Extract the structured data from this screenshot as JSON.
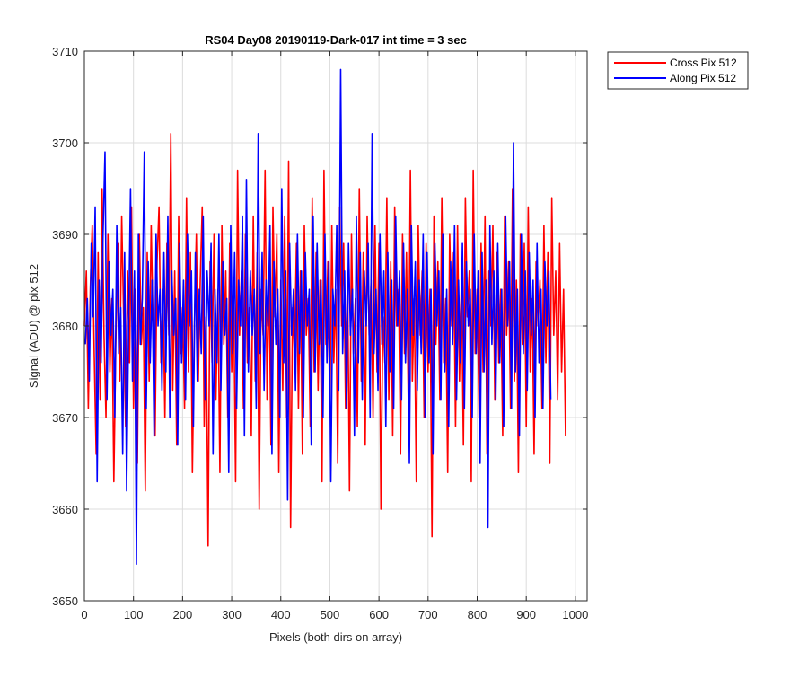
{
  "chart_data": {
    "type": "line",
    "title": "RS04 Day08 20190119-Dark-017 int time = 3 sec",
    "xlabel": "Pixels (both dirs on array)",
    "ylabel": "Signal (ADU) @ pix 512",
    "xlim": [
      0,
      1024
    ],
    "ylim": [
      3650,
      3710
    ],
    "xticks": [
      0,
      100,
      200,
      300,
      400,
      500,
      600,
      700,
      800,
      900,
      1000
    ],
    "yticks": [
      3650,
      3660,
      3670,
      3680,
      3690,
      3700,
      3710
    ],
    "grid": true,
    "legend_position": "outside-top-right",
    "series": [
      {
        "name": "Cross Pix 512",
        "color": "#ff0000",
        "x_start": 0,
        "x_step": 4,
        "values": [
          3680,
          3686,
          3671,
          3684,
          3691,
          3677,
          3666,
          3688,
          3672,
          3695,
          3679,
          3670,
          3690,
          3675,
          3683,
          3663,
          3678,
          3689,
          3674,
          3692,
          3681,
          3669,
          3686,
          3676,
          3693,
          3671,
          3684,
          3665,
          3690,
          3678,
          3682,
          3662,
          3688,
          3674,
          3691,
          3680,
          3668,
          3687,
          3693,
          3676,
          3684,
          3670,
          3689,
          3679,
          3701,
          3673,
          3686,
          3667,
          3692,
          3677,
          3682,
          3671,
          3694,
          3675,
          3688,
          3664,
          3680,
          3690,
          3674,
          3685,
          3693,
          3669,
          3681,
          3656,
          3687,
          3676,
          3690,
          3672,
          3684,
          3664,
          3691,
          3678,
          3686,
          3670,
          3689,
          3675,
          3683,
          3663,
          3697,
          3679,
          3686,
          3671,
          3690,
          3676,
          3682,
          3668,
          3692,
          3674,
          3688,
          3660,
          3684,
          3679,
          3697,
          3672,
          3686,
          3667,
          3693,
          3681,
          3690,
          3664,
          3685,
          3673,
          3692,
          3670,
          3698,
          3658,
          3682,
          3677,
          3689,
          3671,
          3686,
          3666,
          3691,
          3679,
          3683,
          3669,
          3694,
          3675,
          3688,
          3673,
          3685,
          3663,
          3697,
          3678,
          3687,
          3670,
          3691,
          3676,
          3684,
          3665,
          3693,
          3680,
          3689,
          3671,
          3686,
          3662,
          3690,
          3677,
          3683,
          3669,
          3695,
          3674,
          3688,
          3667,
          3692,
          3679,
          3685,
          3670,
          3691,
          3675,
          3689,
          3660,
          3681,
          3676,
          3694,
          3672,
          3687,
          3668,
          3693,
          3680,
          3684,
          3666,
          3690,
          3677,
          3688,
          3671,
          3697,
          3674,
          3683,
          3663,
          3691,
          3679,
          3686,
          3670,
          3689,
          3675,
          3684,
          3657,
          3692,
          3678,
          3687,
          3672,
          3694,
          3676,
          3683,
          3664,
          3690,
          3680,
          3688,
          3669,
          3691,
          3674,
          3685,
          3667,
          3694,
          3681,
          3686,
          3663,
          3697,
          3677,
          3684,
          3670,
          3689,
          3675,
          3692,
          3666,
          3686,
          3680,
          3691,
          3672,
          3688,
          3676,
          3684,
          3668,
          3692,
          3679,
          3687,
          3671,
          3695,
          3674,
          3685,
          3664,
          3690,
          3678,
          3689,
          3669,
          3693,
          3675,
          3683,
          3666,
          3687,
          3680,
          3685,
          3671,
          3691,
          3676,
          3688,
          3665,
          3694,
          3679,
          3686,
          3672,
          3689,
          3675,
          3684,
          3668
        ]
      },
      {
        "name": "Along Pix 512",
        "color": "#0000ff",
        "x_start": 2,
        "x_step": 4,
        "values": [
          3678,
          3683,
          3674,
          3689,
          3681,
          3693,
          3663,
          3685,
          3676,
          3690,
          3699,
          3672,
          3687,
          3679,
          3684,
          3670,
          3691,
          3677,
          3682,
          3666,
          3688,
          3662,
          3680,
          3695,
          3674,
          3686,
          3654,
          3690,
          3678,
          3683,
          3699,
          3671,
          3687,
          3676,
          3685,
          3668,
          3690,
          3680,
          3684,
          3673,
          3688,
          3675,
          3692,
          3670,
          3686,
          3679,
          3683,
          3667,
          3689,
          3676,
          3685,
          3672,
          3690,
          3680,
          3686,
          3669,
          3688,
          3674,
          3684,
          3677,
          3692,
          3672,
          3686,
          3680,
          3689,
          3666,
          3684,
          3676,
          3690,
          3673,
          3687,
          3679,
          3683,
          3664,
          3691,
          3677,
          3688,
          3671,
          3685,
          3680,
          3692,
          3668,
          3696,
          3675,
          3686,
          3679,
          3684,
          3671,
          3701,
          3677,
          3688,
          3673,
          3685,
          3680,
          3691,
          3666,
          3687,
          3678,
          3684,
          3670,
          3695,
          3676,
          3686,
          3661,
          3689,
          3679,
          3684,
          3673,
          3690,
          3677,
          3686,
          3670,
          3688,
          3680,
          3684,
          3667,
          3692,
          3675,
          3689,
          3678,
          3685,
          3670,
          3690,
          3676,
          3687,
          3663,
          3684,
          3680,
          3691,
          3673,
          3708,
          3677,
          3686,
          3671,
          3689,
          3679,
          3684,
          3668,
          3692,
          3676,
          3688,
          3672,
          3686,
          3680,
          3689,
          3670,
          3701,
          3677,
          3684,
          3673,
          3690,
          3678,
          3686,
          3669,
          3688,
          3675,
          3685,
          3671,
          3692,
          3680,
          3686,
          3672,
          3689,
          3676,
          3684,
          3665,
          3691,
          3679,
          3687,
          3673,
          3685,
          3677,
          3690,
          3670,
          3688,
          3676,
          3684,
          3666,
          3689,
          3680,
          3686,
          3672,
          3690,
          3675,
          3684,
          3669,
          3687,
          3678,
          3691,
          3672,
          3685,
          3676,
          3689,
          3671,
          3687,
          3680,
          3684,
          3670,
          3690,
          3677,
          3686,
          3665,
          3688,
          3675,
          3685,
          3658,
          3691,
          3678,
          3686,
          3672,
          3689,
          3676,
          3684,
          3669,
          3692,
          3680,
          3687,
          3671,
          3700,
          3675,
          3684,
          3668,
          3690,
          3677,
          3686,
          3673,
          3688,
          3679,
          3685,
          3670,
          3689,
          3676,
          3684,
          3671,
          3687,
          3680,
          3686,
          3672
        ]
      }
    ]
  }
}
